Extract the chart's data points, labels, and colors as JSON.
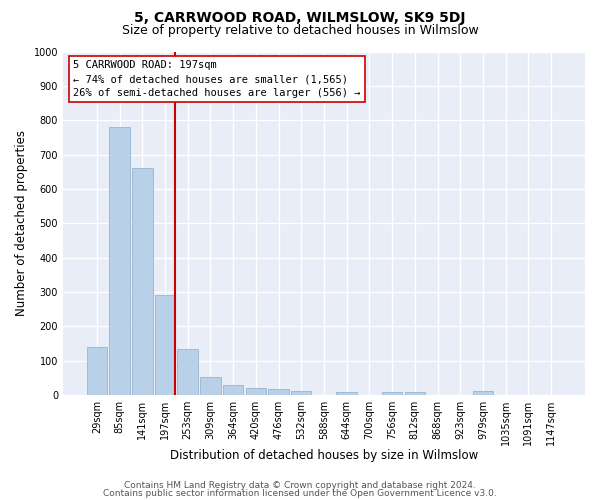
{
  "title": "5, CARRWOOD ROAD, WILMSLOW, SK9 5DJ",
  "subtitle": "Size of property relative to detached houses in Wilmslow",
  "xlabel": "Distribution of detached houses by size in Wilmslow",
  "ylabel": "Number of detached properties",
  "categories": [
    "29sqm",
    "85sqm",
    "141sqm",
    "197sqm",
    "253sqm",
    "309sqm",
    "364sqm",
    "420sqm",
    "476sqm",
    "532sqm",
    "588sqm",
    "644sqm",
    "700sqm",
    "756sqm",
    "812sqm",
    "868sqm",
    "923sqm",
    "979sqm",
    "1035sqm",
    "1091sqm",
    "1147sqm"
  ],
  "values": [
    140,
    780,
    660,
    290,
    135,
    52,
    28,
    20,
    18,
    13,
    0,
    10,
    0,
    10,
    8,
    0,
    0,
    12,
    0,
    0,
    0
  ],
  "bar_color": "#b8d0e8",
  "bar_edge_color": "#8aaec8",
  "vline_color": "#cc0000",
  "vline_index": 3,
  "annotation_line1": "5 CARRWOOD ROAD: 197sqm",
  "annotation_line2": "← 74% of detached houses are smaller (1,565)",
  "annotation_line3": "26% of semi-detached houses are larger (556) →",
  "ylim_max": 1000,
  "yticks": [
    0,
    100,
    200,
    300,
    400,
    500,
    600,
    700,
    800,
    900,
    1000
  ],
  "footer1": "Contains HM Land Registry data © Crown copyright and database right 2024.",
  "footer2": "Contains public sector information licensed under the Open Government Licence v3.0.",
  "fig_bg_color": "#ffffff",
  "plot_bg_color": "#e8edf8",
  "grid_color": "#ffffff",
  "title_fontsize": 10,
  "subtitle_fontsize": 9,
  "ylabel_fontsize": 8.5,
  "xlabel_fontsize": 8.5,
  "tick_fontsize": 7,
  "annot_fontsize": 7.5,
  "footer_fontsize": 6.5
}
